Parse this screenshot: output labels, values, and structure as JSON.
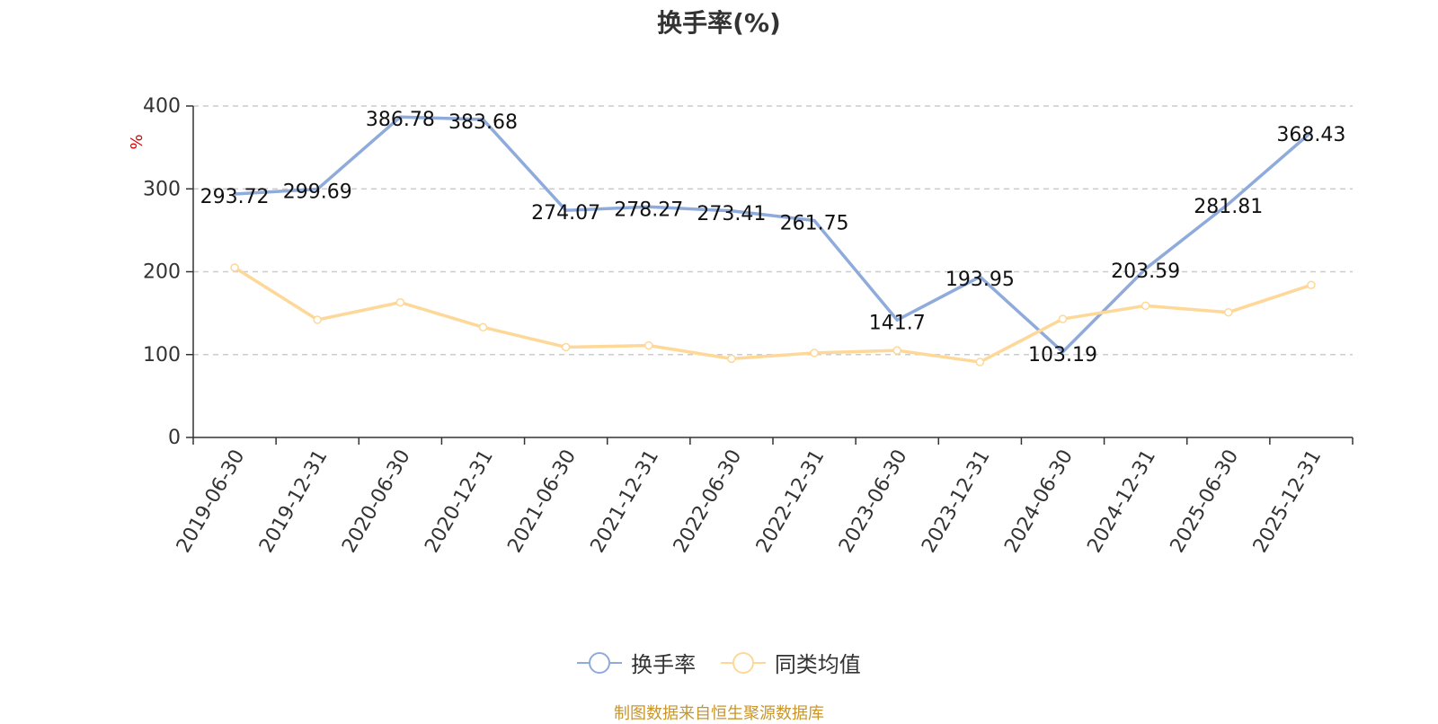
{
  "title": "换手率(%)",
  "source_note": "制图数据来自恒生聚源数据库",
  "colors": {
    "turnover": "#8fabdb",
    "peer_avg": "#fdd898",
    "unit_label": "#e00000",
    "axis": "#333333",
    "grid": "#cccccc"
  },
  "chart_data": {
    "type": "line",
    "categories": [
      "2019-06-30",
      "2019-12-31",
      "2020-06-30",
      "2020-12-31",
      "2021-06-30",
      "2021-12-31",
      "2022-06-30",
      "2022-12-31",
      "2023-06-30",
      "2023-12-31",
      "2024-06-30",
      "2024-12-31",
      "2025-06-30",
      "2025-12-31"
    ],
    "series": [
      {
        "name": "换手率",
        "values": [
          293.72,
          299.69,
          386.78,
          383.68,
          274.07,
          278.27,
          273.41,
          261.75,
          141.7,
          193.95,
          103.19,
          203.59,
          281.81,
          368.43
        ],
        "labels": [
          "293.72",
          "299.69",
          "386.78",
          "383.68",
          "274.07",
          "278.27",
          "273.41",
          "261.75",
          "141.7",
          "193.95",
          "103.19",
          "203.59",
          "281.81",
          "368.43"
        ]
      },
      {
        "name": "同类均值",
        "values": [
          205,
          142,
          163,
          133,
          109,
          111,
          95,
          102,
          105,
          91,
          143,
          159,
          151,
          184
        ]
      }
    ],
    "ylabel": "%",
    "ylim": [
      0,
      400
    ],
    "yticks": [
      "0",
      "100",
      "200",
      "300",
      "400"
    ],
    "grid": true,
    "legend_position": "bottom"
  }
}
